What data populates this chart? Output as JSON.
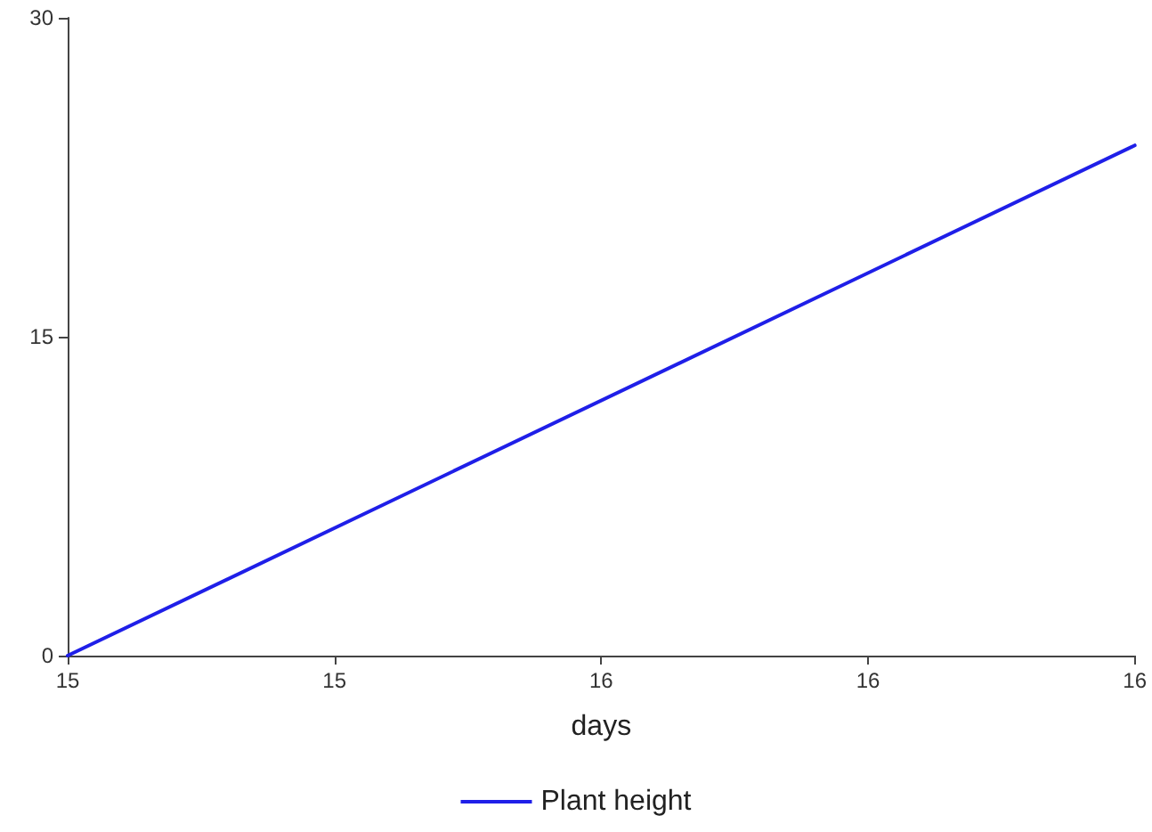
{
  "chart_data": {
    "type": "line",
    "xlabel": "days",
    "x": [
      15,
      16
    ],
    "series": [
      {
        "name": "Plant height",
        "color": "#1f1fe8",
        "values": [
          0,
          24
        ]
      }
    ],
    "xlim": [
      15,
      16
    ],
    "xticks": [
      {
        "value": 15,
        "label": "15"
      },
      {
        "value": 15.25,
        "label": "15"
      },
      {
        "value": 15.5,
        "label": "16"
      },
      {
        "value": 15.75,
        "label": "16"
      },
      {
        "value": 16,
        "label": "16"
      }
    ],
    "ylim": [
      0,
      30
    ],
    "yticks": [
      0,
      15,
      30
    ],
    "grid": false,
    "legend": "bottom",
    "marker": "none",
    "line_style": "solid"
  }
}
